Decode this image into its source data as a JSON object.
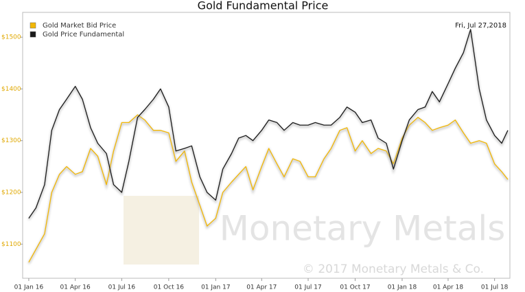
{
  "chart_data": {
    "type": "line",
    "title": "Gold Fundamental Price",
    "annotation": "Fri, Jul 27,2018",
    "watermark": "Monetary Metals",
    "copyright": "© 2017 Monetary Metals & Co.",
    "legend": "upper left",
    "grid": false,
    "x": [
      "2016-01-01",
      "2016-01-15",
      "2016-02-01",
      "2016-02-15",
      "2016-03-01",
      "2016-03-15",
      "2016-04-01",
      "2016-04-15",
      "2016-05-01",
      "2016-05-15",
      "2016-06-01",
      "2016-06-15",
      "2016-07-01",
      "2016-07-15",
      "2016-08-01",
      "2016-08-15",
      "2016-09-01",
      "2016-09-15",
      "2016-10-01",
      "2016-10-15",
      "2016-11-01",
      "2016-11-15",
      "2016-12-01",
      "2016-12-15",
      "2017-01-01",
      "2017-01-15",
      "2017-02-01",
      "2017-02-15",
      "2017-03-01",
      "2017-03-15",
      "2017-04-01",
      "2017-04-15",
      "2017-05-01",
      "2017-05-15",
      "2017-06-01",
      "2017-06-15",
      "2017-07-01",
      "2017-07-15",
      "2017-08-01",
      "2017-08-15",
      "2017-09-01",
      "2017-09-15",
      "2017-10-01",
      "2017-10-15",
      "2017-11-01",
      "2017-11-15",
      "2017-12-01",
      "2017-12-15",
      "2018-01-01",
      "2018-01-15",
      "2018-02-01",
      "2018-02-15",
      "2018-03-01",
      "2018-03-15",
      "2018-04-01",
      "2018-04-15",
      "2018-05-01",
      "2018-05-15",
      "2018-06-01",
      "2018-06-15",
      "2018-07-01",
      "2018-07-15",
      "2018-07-27"
    ],
    "series": [
      {
        "name": "Gold Market Bid Price",
        "color": "#f2b705",
        "values": [
          1065,
          1090,
          1120,
          1200,
          1235,
          1250,
          1235,
          1240,
          1285,
          1270,
          1215,
          1280,
          1335,
          1335,
          1350,
          1340,
          1320,
          1320,
          1315,
          1260,
          1280,
          1220,
          1175,
          1135,
          1150,
          1200,
          1220,
          1235,
          1250,
          1205,
          1250,
          1285,
          1255,
          1230,
          1265,
          1260,
          1230,
          1230,
          1265,
          1285,
          1320,
          1325,
          1280,
          1300,
          1275,
          1285,
          1280,
          1255,
          1305,
          1330,
          1345,
          1335,
          1320,
          1325,
          1330,
          1340,
          1315,
          1295,
          1300,
          1295,
          1255,
          1240,
          1225
        ]
      },
      {
        "name": "Gold Price Fundamental",
        "color": "#1a1a1a",
        "values": [
          1150,
          1170,
          1215,
          1320,
          1360,
          1380,
          1405,
          1380,
          1325,
          1295,
          1275,
          1215,
          1200,
          1260,
          1345,
          1360,
          1380,
          1400,
          1365,
          1280,
          1285,
          1290,
          1230,
          1200,
          1185,
          1245,
          1275,
          1305,
          1310,
          1300,
          1320,
          1340,
          1335,
          1320,
          1335,
          1330,
          1330,
          1335,
          1330,
          1330,
          1345,
          1365,
          1355,
          1335,
          1340,
          1305,
          1295,
          1245,
          1300,
          1340,
          1360,
          1365,
          1395,
          1375,
          1410,
          1440,
          1470,
          1515,
          1400,
          1340,
          1310,
          1295,
          1320
        ]
      }
    ],
    "xlim": [
      "2015-12-20",
      "2018-07-31"
    ],
    "xticks": [
      {
        "value": "2016-01-01",
        "label": "01 Jan 16"
      },
      {
        "value": "2016-04-01",
        "label": "01 Apr 16"
      },
      {
        "value": "2016-07-01",
        "label": "01 Jul 16"
      },
      {
        "value": "2016-10-01",
        "label": "01 Oct 16"
      },
      {
        "value": "2017-01-01",
        "label": "01 Jan 17"
      },
      {
        "value": "2017-04-01",
        "label": "01 Apr 17"
      },
      {
        "value": "2017-07-01",
        "label": "01 Jul 17"
      },
      {
        "value": "2017-10-01",
        "label": "01 Oct 17"
      },
      {
        "value": "2018-01-01",
        "label": "01 Jan 18"
      },
      {
        "value": "2018-04-01",
        "label": "01 Apr 18"
      },
      {
        "value": "2018-07-01",
        "label": "01 Jul 18"
      }
    ],
    "ylim": [
      1034,
      1548
    ],
    "yticks": [
      {
        "value": 1100,
        "label": "$1100"
      },
      {
        "value": 1200,
        "label": "$1200"
      },
      {
        "value": 1300,
        "label": "$1300"
      },
      {
        "value": 1400,
        "label": "$1400"
      },
      {
        "value": 1500,
        "label": "$1500"
      }
    ]
  }
}
